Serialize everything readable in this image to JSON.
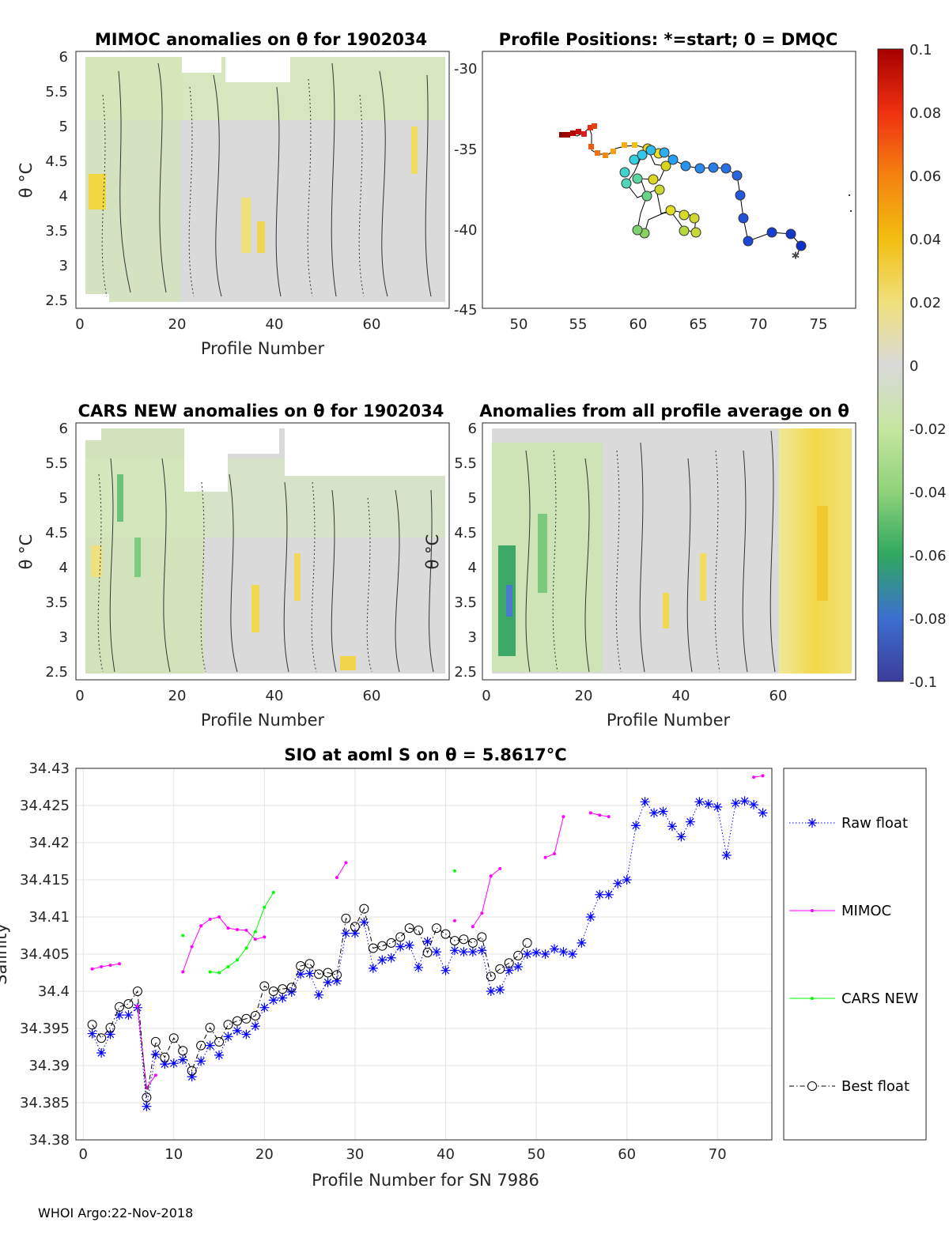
{
  "footer": "WHOI Argo:22-Nov-2018",
  "colorbar": {
    "ticks": [
      "0.1",
      "0.08",
      "0.06",
      "0.04",
      "0.02",
      "0",
      "-0.02",
      "-0.04",
      "-0.06",
      "-0.08",
      "-0.1"
    ],
    "range": [
      -0.1,
      0.1
    ]
  },
  "panels": {
    "mimoc": {
      "title": "MIMOC anomalies on θ  for 1902034",
      "xlabel": "Profile Number",
      "ylabel": "θ °C",
      "xticks": [
        "0",
        "20",
        "40",
        "60"
      ],
      "yticks": [
        "6",
        "5.5",
        "5",
        "4.5",
        "4",
        "3.5",
        "3",
        "2.5"
      ]
    },
    "positions": {
      "title": "Profile Positions: *=start; 0 = DMQC",
      "xticks": [
        "50",
        "55",
        "60",
        "65",
        "70",
        "75"
      ],
      "yticks": [
        "-30",
        "-35",
        "-40",
        "-45"
      ]
    },
    "cars": {
      "title": "CARS NEW anomalies on θ for 1902034",
      "xlabel": "Profile Number",
      "ylabel": "θ °C",
      "xticks": [
        "0",
        "20",
        "40",
        "60"
      ],
      "yticks": [
        "6",
        "5.5",
        "5",
        "4.5",
        "4",
        "3.5",
        "3",
        "2.5"
      ]
    },
    "avg": {
      "title": "Anomalies from all profile average on θ",
      "xlabel": "Profile Number",
      "ylabel": "θ °C",
      "xticks": [
        "0",
        "20",
        "40",
        "60"
      ],
      "yticks": [
        "6",
        "5.5",
        "5",
        "4.5",
        "4",
        "3.5",
        "3",
        "2.5"
      ]
    }
  },
  "chart_data": {
    "type": "line",
    "title": "SIO at aoml S on θ = 5.8617°C",
    "xlabel": "Profile Number for SN 7986",
    "ylabel": "Salinity",
    "xlim": [
      0,
      76
    ],
    "ylim": [
      34.38,
      34.43
    ],
    "xticks": [
      "0",
      "10",
      "20",
      "30",
      "40",
      "50",
      "60",
      "70"
    ],
    "yticks": [
      "34.43",
      "34.425",
      "34.42",
      "34.415",
      "34.41",
      "34.405",
      "34.4",
      "34.395",
      "34.39",
      "34.385",
      "34.38"
    ],
    "legend": [
      "Raw float",
      "MIMOC",
      "CARS NEW",
      "Best float"
    ],
    "series": [
      {
        "name": "Raw float",
        "color": "#0000ff",
        "x": [
          1,
          2,
          3,
          4,
          5,
          6,
          7,
          8,
          9,
          10,
          11,
          12,
          13,
          14,
          15,
          16,
          17,
          18,
          19,
          20,
          21,
          22,
          23,
          24,
          25,
          26,
          27,
          28,
          29,
          30,
          31,
          32,
          33,
          34,
          35,
          36,
          37,
          38,
          39,
          40,
          41,
          42,
          43,
          44,
          45,
          46,
          47,
          48,
          49,
          50,
          51,
          52,
          53,
          54,
          55,
          56,
          57,
          58,
          59,
          60,
          61,
          62,
          63,
          64,
          65,
          66,
          67,
          68,
          69,
          70,
          71,
          72,
          73,
          74,
          75
        ],
        "values": [
          34.3943,
          34.3917,
          34.3942,
          34.3968,
          34.3968,
          34.3978,
          34.3845,
          34.3915,
          34.3902,
          34.3903,
          34.3908,
          34.3885,
          34.3906,
          34.3927,
          34.3914,
          34.3939,
          34.3947,
          34.3942,
          34.3953,
          34.3978,
          34.3988,
          34.3991,
          34.3999,
          34.4023,
          34.4024,
          34.3995,
          34.4012,
          34.4014,
          34.4078,
          34.4078,
          34.4093,
          34.4031,
          34.4042,
          34.4045,
          34.406,
          34.4062,
          34.4032,
          34.4067,
          34.4053,
          34.4028,
          34.4055,
          34.4053,
          34.4053,
          34.4055,
          34.4,
          34.4002,
          34.4028,
          34.4033,
          34.405,
          34.4052,
          34.405,
          34.4057,
          34.4053,
          34.405,
          34.4065,
          34.41,
          34.413,
          34.413,
          34.4145,
          34.415,
          34.4223,
          34.4255,
          34.424,
          34.4242,
          34.4222,
          34.4208,
          34.4228,
          34.4255,
          34.4252,
          34.4248,
          34.4183,
          34.4253,
          34.4256,
          34.4251,
          34.424
        ]
      },
      {
        "name": "MIMOC",
        "color": "#ff00ff",
        "segments": [
          {
            "x": [
              1,
              2,
              3,
              4
            ],
            "values": [
              34.403,
              34.4033,
              34.4035,
              34.4037
            ]
          },
          {
            "x": [
              6,
              7,
              8
            ],
            "values": [
              34.398,
              34.387,
              34.3887
            ]
          },
          {
            "x": [
              11,
              12,
              13,
              14,
              15,
              16,
              17,
              18,
              19,
              20
            ],
            "values": [
              34.4026,
              34.406,
              34.4088,
              34.4097,
              34.41,
              34.4085,
              34.4083,
              34.4082,
              34.407,
              34.4073
            ]
          },
          {
            "x": [
              28,
              29
            ],
            "values": [
              34.4153,
              34.4173
            ]
          },
          {
            "x": [
              41
            ],
            "values": [
              34.4095
            ]
          },
          {
            "x": [
              43,
              44,
              45,
              46
            ],
            "values": [
              34.4087,
              34.4105,
              34.4155,
              34.4165
            ]
          },
          {
            "x": [
              51,
              52,
              53
            ],
            "values": [
              34.418,
              34.4185,
              34.4235
            ]
          },
          {
            "x": [
              56,
              57,
              58
            ],
            "values": [
              34.424,
              34.4237,
              34.4235
            ]
          },
          {
            "x": [
              74,
              75
            ],
            "values": [
              34.4288,
              34.429
            ]
          }
        ]
      },
      {
        "name": "CARS NEW",
        "color": "#00ff00",
        "segments": [
          {
            "x": [
              11
            ],
            "values": [
              34.4075
            ]
          },
          {
            "x": [
              14,
              15,
              16,
              17,
              18,
              19,
              20,
              21
            ],
            "values": [
              34.4026,
              34.4025,
              34.4033,
              34.4042,
              34.4058,
              34.408,
              34.4113,
              34.4133
            ]
          },
          {
            "x": [
              41
            ],
            "values": [
              34.4162
            ]
          }
        ]
      },
      {
        "name": "Best float",
        "color": "#000000",
        "x": [
          1,
          2,
          3,
          4,
          5,
          6,
          7,
          8,
          9,
          10,
          11,
          12,
          13,
          14,
          15,
          16,
          17,
          18,
          19,
          20,
          21,
          22,
          23,
          24,
          25,
          26,
          27,
          28,
          29,
          30,
          31,
          32,
          33,
          34,
          35,
          36,
          37,
          38,
          39,
          40,
          41,
          42,
          43,
          44,
          45,
          46,
          47,
          48,
          49
        ],
        "values": [
          34.3955,
          34.3937,
          34.3951,
          34.3979,
          34.3983,
          34.4,
          34.3857,
          34.3932,
          34.3911,
          34.3937,
          34.392,
          34.3893,
          34.3927,
          34.3951,
          34.3932,
          34.3955,
          34.396,
          34.3963,
          34.3967,
          34.4007,
          34.4,
          34.4003,
          34.4005,
          34.4034,
          34.4037,
          34.4023,
          34.4025,
          34.4022,
          34.4098,
          34.4087,
          34.4111,
          34.4058,
          34.4061,
          34.4065,
          34.4073,
          34.4085,
          34.4082,
          34.4052,
          34.4085,
          34.4077,
          34.4068,
          34.407,
          34.4065,
          34.4073,
          34.402,
          34.403,
          34.4038,
          34.4048,
          34.4065
        ]
      }
    ]
  }
}
